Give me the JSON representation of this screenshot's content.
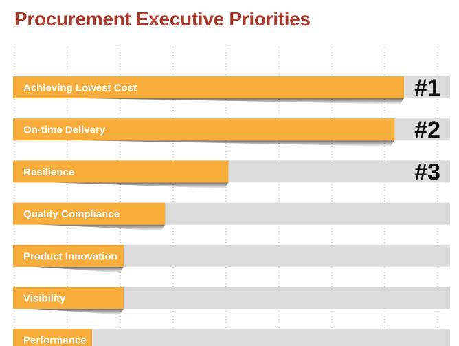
{
  "title": "Procurement Executive Priorities",
  "colors": {
    "title": "#a8392a",
    "bar": "#f7ad3c",
    "track": "#dcdcdc",
    "grid": "#9a9a9a",
    "rank_text": "#111111"
  },
  "chart_data": {
    "type": "bar",
    "orientation": "horizontal",
    "categories": [
      "Achieving Lowest Cost",
      "On-time Delivery",
      "Resilience",
      "Quality Compliance",
      "Product Innovation",
      "Visibility",
      "Performance"
    ],
    "values": [
      100,
      97.6,
      55.1,
      38.9,
      28.3,
      28.3,
      20.2
    ],
    "xlim": [
      0,
      100
    ],
    "grid": "vertical dotted",
    "rank_labels": [
      "#1",
      "#2",
      "#3"
    ]
  }
}
